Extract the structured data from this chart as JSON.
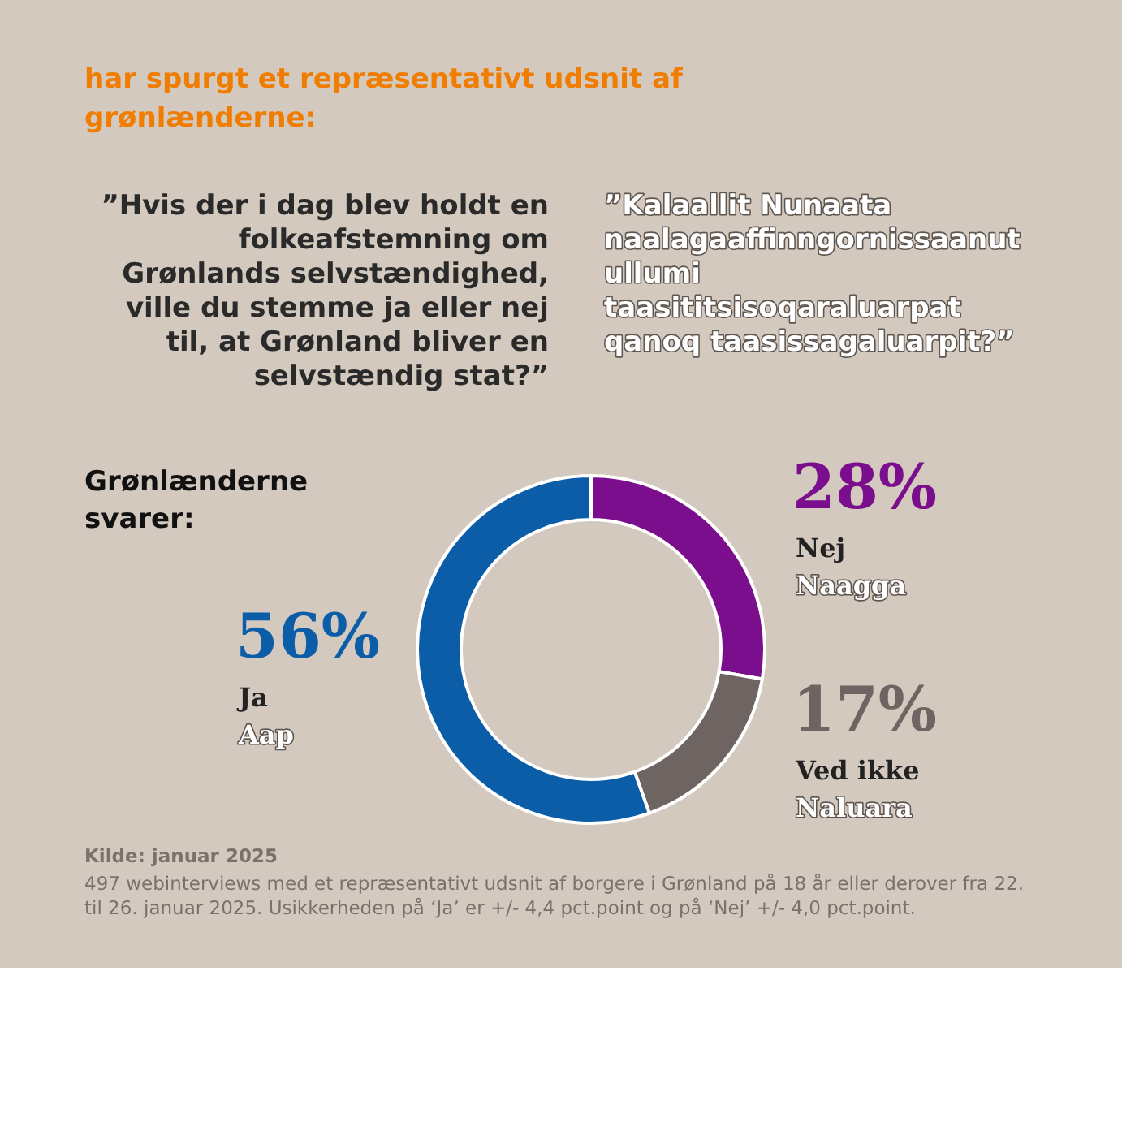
{
  "chart_data": {
    "type": "donut",
    "title": "har spurgt et repræsentativt udsnit af grønlænderne:",
    "subtitle": "”Hvis der i dag blev holdt en folkeafstemning om Grønlands selvstændighed, ville du stemme ja eller nej til, at Grønland bliver en selvstændig stat?”",
    "categories": [
      "Nej",
      "Ved ikke",
      "Ja"
    ],
    "values": [
      28,
      17,
      56
    ],
    "colors": [
      "#7a0e8c",
      "#6e6562",
      "#0c5da8"
    ],
    "value_labels": [
      "28%",
      "17%",
      "56%"
    ],
    "annotations": [
      "Naagga",
      "Naluara",
      "Aap",
      "”Kalaallit Nunaata naalagaaffinngornissaanut ullumi taasititsisoqaraluarpat qanoq taasissagaluarpit?”",
      "Grønlænderne svarer:",
      "Kilde: januar 2025",
      "497 webinterviews med et repræsentativt udsnit af borgere i Grønland på 18 år eller derover fra 22. til 26. januar 2025. Usikkerheden på ‘Ja’ er +/- 4,4 pct.point og på ‘Nej’ +/- 4,0 pct.point."
    ]
  }
}
